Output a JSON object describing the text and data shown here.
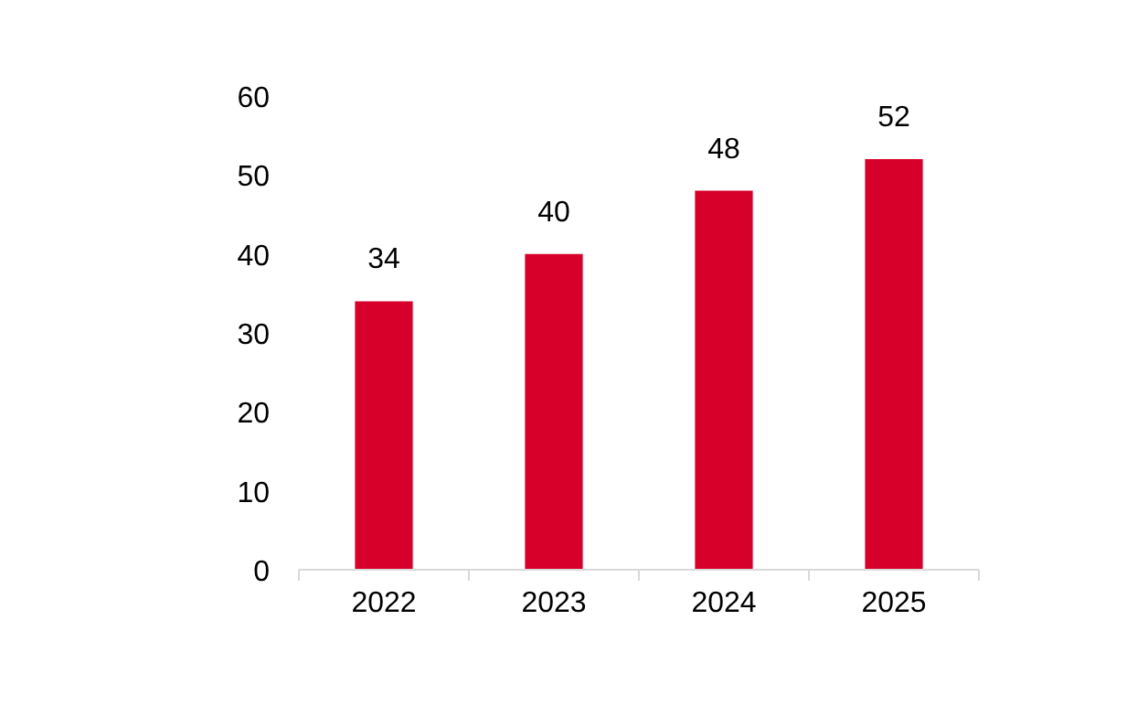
{
  "chart_data": {
    "type": "bar",
    "categories": [
      "2022",
      "2023",
      "2024",
      "2025"
    ],
    "values": [
      34,
      40,
      48,
      52
    ],
    "color": "#d6002a",
    "ylim": [
      0,
      60
    ],
    "yticks": [
      0,
      10,
      20,
      30,
      40,
      50,
      60
    ],
    "grid": false,
    "data_labels": true
  }
}
